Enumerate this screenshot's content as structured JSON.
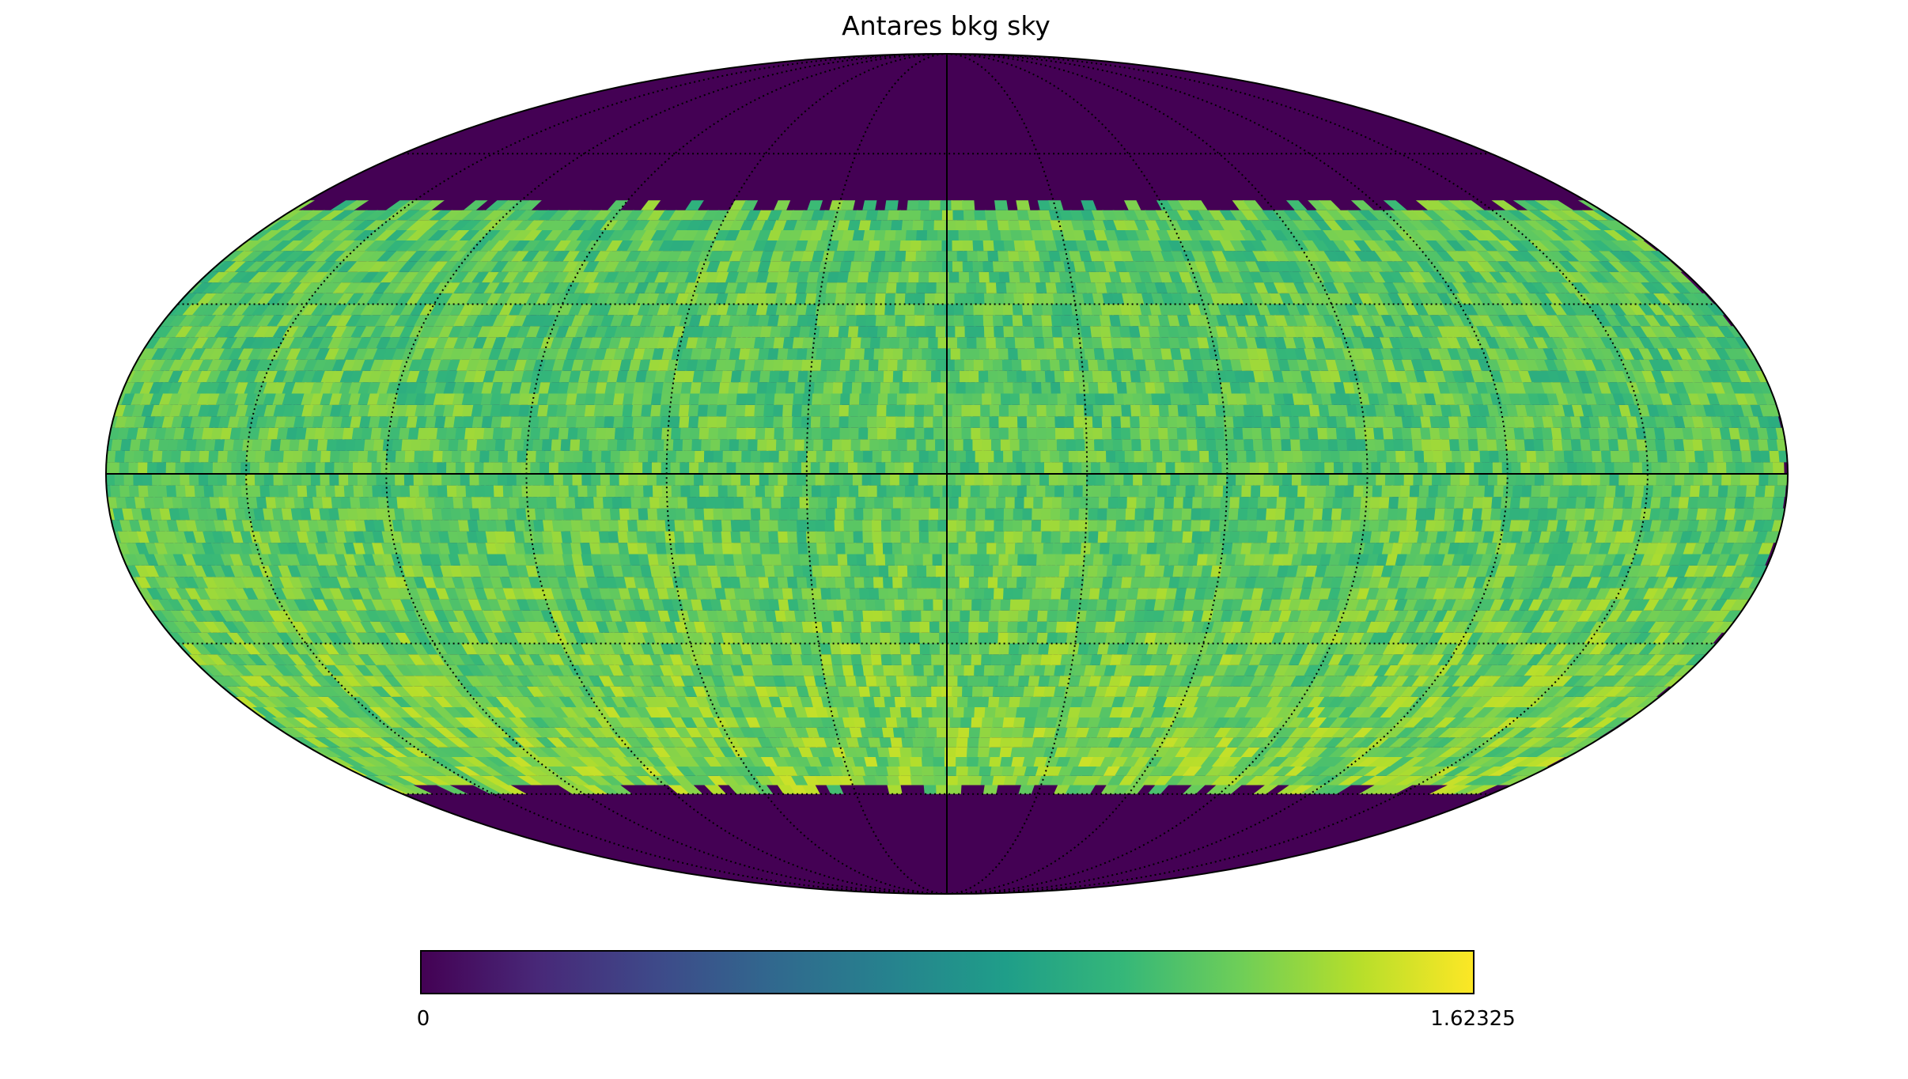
{
  "chart_data": {
    "type": "heatmap",
    "projection": "mollweide",
    "title": "Antares bkg sky",
    "colormap": {
      "name": "viridis",
      "min": 0,
      "max": 1.62325,
      "min_label": "0",
      "max_label": "1.62325",
      "stops": [
        "#440154",
        "#482878",
        "#3e4989",
        "#31688e",
        "#26828e",
        "#1f9e89",
        "#35b779",
        "#6ece58",
        "#b5de2b",
        "#fde725"
      ],
      "orientation": "horizontal",
      "placement": "bottom"
    },
    "graticule": {
      "meridian_spacing_deg": 30,
      "parallel_spacing_deg": 30,
      "style": "dotted",
      "color": "#000000"
    },
    "bands": [
      {
        "lat_min": 50,
        "lat_max": 90,
        "value_mean": 0,
        "value_spread": 0
      },
      {
        "lat_min": -60,
        "lat_max": 50,
        "value_mean": 1.2,
        "value_spread": 0.12
      }
    ],
    "data_edge_jagged": {
      "north_lat": 50,
      "south_lat": -60
    },
    "empty_value": 0
  }
}
